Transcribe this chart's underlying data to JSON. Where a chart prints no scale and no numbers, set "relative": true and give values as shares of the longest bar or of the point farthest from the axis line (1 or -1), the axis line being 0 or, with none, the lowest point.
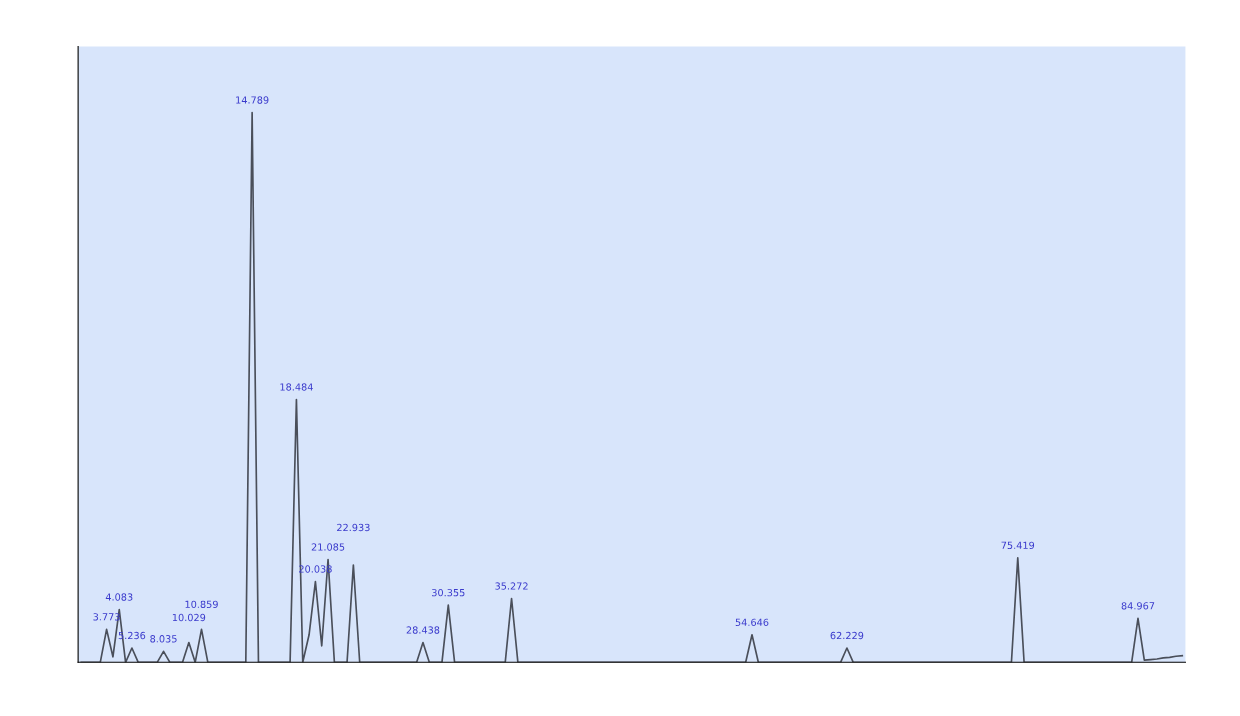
{
  "chart_data": {
    "type": "line",
    "relative": true,
    "grid": false,
    "legend": false,
    "categories": [
      null,
      null,
      null,
      null,
      null,
      null,
      null,
      null,
      null,
      null,
      null,
      null,
      null,
      null,
      null,
      null,
      null,
      null,
      null,
      null,
      null,
      null,
      null,
      null,
      null,
      null,
      null,
      null,
      null,
      null,
      null,
      null,
      null,
      null,
      null,
      null,
      null,
      null,
      null,
      null,
      null,
      null,
      null,
      null,
      null,
      null,
      null,
      null,
      null,
      null,
      null,
      null,
      null,
      null,
      null,
      null,
      null,
      null,
      null,
      null,
      null,
      null,
      null,
      null,
      null,
      null,
      null,
      null,
      null,
      null,
      null,
      null,
      null,
      null,
      null,
      null,
      null,
      null,
      null,
      null,
      null,
      null,
      null,
      null,
      null,
      null,
      null,
      null,
      null,
      null,
      null,
      null,
      null,
      null,
      null,
      null,
      null,
      null,
      null,
      null,
      null,
      null,
      null,
      null,
      null,
      null,
      null,
      null,
      null,
      null,
      null,
      null,
      null,
      null,
      null,
      null,
      null,
      null,
      null,
      null,
      null,
      null,
      null,
      null,
      null,
      null,
      null,
      null,
      null,
      null,
      null,
      null,
      null,
      null,
      null,
      null,
      null,
      null,
      null,
      null,
      null,
      null,
      null,
      null,
      null,
      null,
      null,
      null,
      null,
      null,
      null,
      null,
      null,
      null,
      null,
      null,
      null,
      null,
      null,
      null,
      null,
      null,
      null,
      null,
      null,
      null,
      null,
      null,
      null,
      null,
      null,
      null,
      null,
      null,
      null
    ],
    "series": [
      {
        "color": "#4a4f5a",
        "values": [
          0,
          0,
          0,
          0,
          0.06,
          0.01,
          0.096,
          0,
          0.026,
          0,
          0,
          0,
          0,
          0.02,
          0,
          0,
          0,
          0.036,
          0,
          0.06,
          0,
          0,
          0,
          0,
          0,
          0,
          0,
          1,
          0,
          0,
          0,
          0,
          0,
          0,
          0.478,
          0,
          0.05,
          0.147,
          0.03,
          0.187,
          0,
          0,
          0,
          0.177,
          0,
          0,
          0,
          0,
          0,
          0,
          0,
          0,
          0,
          0,
          0.036,
          0,
          0,
          0,
          0.104,
          0,
          0,
          0,
          0,
          0,
          0,
          0,
          0,
          0,
          0.116,
          0,
          0,
          0,
          0,
          0,
          0,
          0,
          0,
          0,
          0,
          0,
          0,
          0,
          0,
          0,
          0,
          0,
          0,
          0,
          0,
          0,
          0,
          0,
          0,
          0,
          0,
          0,
          0,
          0,
          0,
          0,
          0,
          0,
          0,
          0,
          0,
          0,
          0.05,
          0,
          0,
          0,
          0,
          0,
          0,
          0,
          0,
          0,
          0,
          0,
          0,
          0,
          0,
          0.026,
          0,
          0,
          0,
          0,
          0,
          0,
          0,
          0,
          0,
          0,
          0,
          0,
          0,
          0,
          0,
          0,
          0,
          0,
          0,
          0,
          0,
          0,
          0,
          0,
          0,
          0,
          0.19,
          0,
          0,
          0,
          0,
          0,
          0,
          0,
          0,
          0,
          0,
          0,
          0,
          0,
          0,
          0,
          0,
          0,
          0,
          0.08,
          0.004,
          0.005,
          0.006,
          0.008,
          0.009,
          0.011,
          0.012
        ]
      }
    ],
    "annotations": [
      "3.773",
      "4.083",
      "5.236",
      "8.035",
      "10.029",
      "10.859",
      "14.789",
      "18.484",
      "20.038",
      "21.085",
      "22.933",
      "28.438",
      "30.355",
      "35.272",
      "54.646",
      "62.229",
      "75.419",
      "84.967"
    ]
  }
}
